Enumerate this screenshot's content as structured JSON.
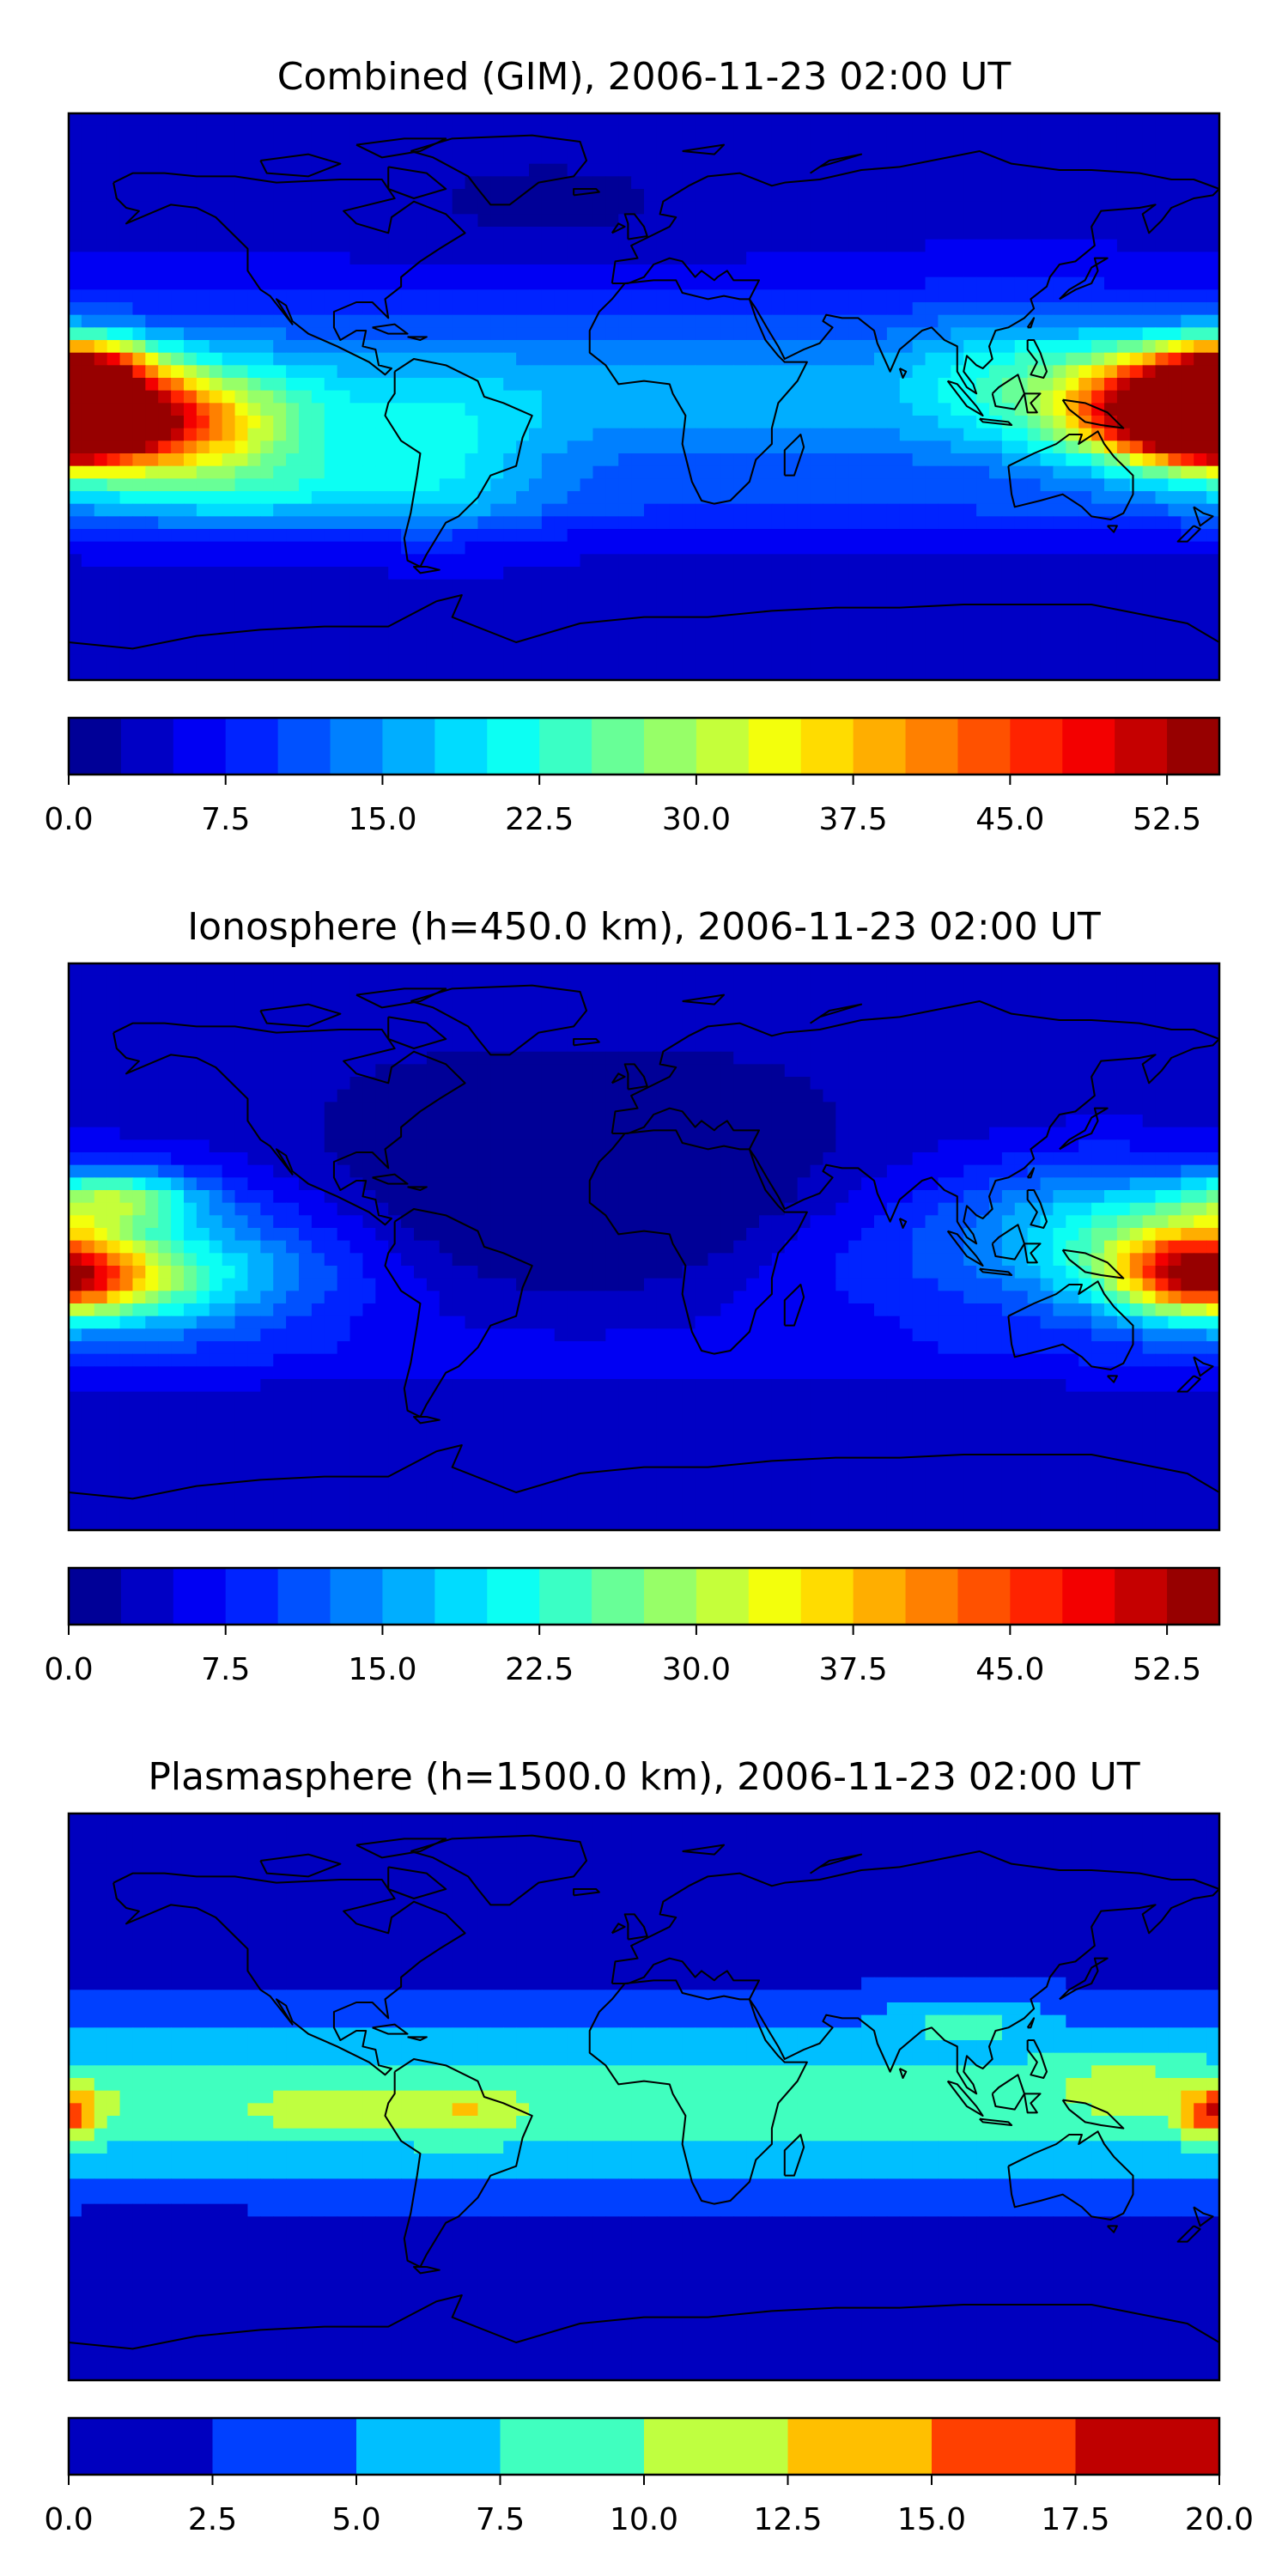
{
  "chart_data": [
    {
      "type": "heatmap",
      "title": "Combined (GIM), 2006-11-23 02:00 UT",
      "projection": "equirectangular world map with coastlines",
      "colormap": "jet",
      "colorbar": {
        "min": 0.0,
        "max": 55.0,
        "step": 2.5,
        "tick_labels": [
          "0.0",
          "7.5",
          "15.0",
          "22.5",
          "30.0",
          "37.5",
          "45.0",
          "52.5"
        ],
        "tick_values": [
          0,
          7.5,
          15,
          22.5,
          30,
          37.5,
          45,
          52.5
        ]
      },
      "features": [
        {
          "lon": -180,
          "lat": -8,
          "value": 52,
          "spread_lon": 40,
          "spread_lat": 14
        },
        {
          "lon": -150,
          "lat": -8,
          "value": 33,
          "spread_lon": 45,
          "spread_lat": 18
        },
        {
          "lon": -175,
          "lat": 10,
          "value": 38,
          "spread_lon": 22,
          "spread_lat": 9
        },
        {
          "lon": -120,
          "lat": -28,
          "value": 20,
          "spread_lon": 60,
          "spread_lat": 14
        },
        {
          "lon": 165,
          "lat": 0,
          "value": 44,
          "spread_lon": 30,
          "spread_lat": 16
        },
        {
          "lon": 178,
          "lat": -10,
          "value": 52,
          "spread_lon": 14,
          "spread_lat": 8
        },
        {
          "lon": 115,
          "lat": 8,
          "value": 22,
          "spread_lon": 30,
          "spread_lat": 22
        },
        {
          "lon": -60,
          "lat": -20,
          "value": 18,
          "spread_lon": 30,
          "spread_lat": 25
        },
        {
          "lon": 30,
          "lat": -20,
          "value": 12,
          "spread_lon": 60,
          "spread_lat": 30
        },
        {
          "lon": -30,
          "lat": 60,
          "value": 2,
          "spread_lon": 60,
          "spread_lat": 20
        }
      ]
    },
    {
      "type": "heatmap",
      "title": "Ionosphere  (h=450.0 km), 2006-11-23 02:00 UT",
      "projection": "equirectangular world map with coastlines",
      "colormap": "jet",
      "colorbar": {
        "min": 0.0,
        "max": 55.0,
        "step": 2.5,
        "tick_labels": [
          "0.0",
          "7.5",
          "15.0",
          "22.5",
          "30.0",
          "37.5",
          "45.0",
          "52.5"
        ],
        "tick_values": [
          0,
          7.5,
          15,
          22.5,
          30,
          37.5,
          45,
          52.5
        ]
      },
      "features": [
        {
          "lon": -180,
          "lat": -10,
          "value": 34,
          "spread_lon": 30,
          "spread_lat": 12
        },
        {
          "lon": -165,
          "lat": 15,
          "value": 28,
          "spread_lon": 25,
          "spread_lat": 9
        },
        {
          "lon": -150,
          "lat": -10,
          "value": 22,
          "spread_lon": 45,
          "spread_lat": 18
        },
        {
          "lon": 170,
          "lat": -5,
          "value": 30,
          "spread_lon": 25,
          "spread_lat": 16
        },
        {
          "lon": 140,
          "lat": 5,
          "value": 20,
          "spread_lon": 35,
          "spread_lat": 22
        },
        {
          "lon": -20,
          "lat": 10,
          "value": -4,
          "spread_lon": 80,
          "spread_lat": 30
        }
      ]
    },
    {
      "type": "heatmap",
      "title": "Plasmasphere (h=1500.0 km), 2006-11-23 02:00 UT",
      "projection": "equirectangular world map with coastlines",
      "colormap": "jet",
      "colorbar": {
        "min": 0.0,
        "max": 20.0,
        "step": 2.5,
        "tick_labels": [
          "0.0",
          "2.5",
          "5.0",
          "7.5",
          "10.0",
          "12.5",
          "15.0",
          "17.5",
          "20.0"
        ],
        "tick_values": [
          0,
          2.5,
          5,
          7.5,
          10,
          12.5,
          15,
          17.5,
          20
        ]
      },
      "features": [
        {
          "lon": -180,
          "lat": -5,
          "value": 13.5,
          "spread_lon": 12,
          "spread_lat": 8
        },
        {
          "lon": -100,
          "lat": -5,
          "value": 11,
          "spread_lon": 30,
          "spread_lat": 8
        },
        {
          "lon": -55,
          "lat": -5,
          "value": 12.5,
          "spread_lon": 18,
          "spread_lat": 8
        },
        {
          "lon": 150,
          "lat": 5,
          "value": 11.5,
          "spread_lon": 20,
          "spread_lat": 10
        },
        {
          "lon": 178,
          "lat": -5,
          "value": 13.5,
          "spread_lon": 10,
          "spread_lat": 8
        },
        {
          "lon": 100,
          "lat": 25,
          "value": 8.5,
          "spread_lon": 25,
          "spread_lat": 8
        },
        {
          "lon": -150,
          "lat": -40,
          "value": 1,
          "spread_lon": 25,
          "spread_lat": 8
        }
      ]
    }
  ]
}
